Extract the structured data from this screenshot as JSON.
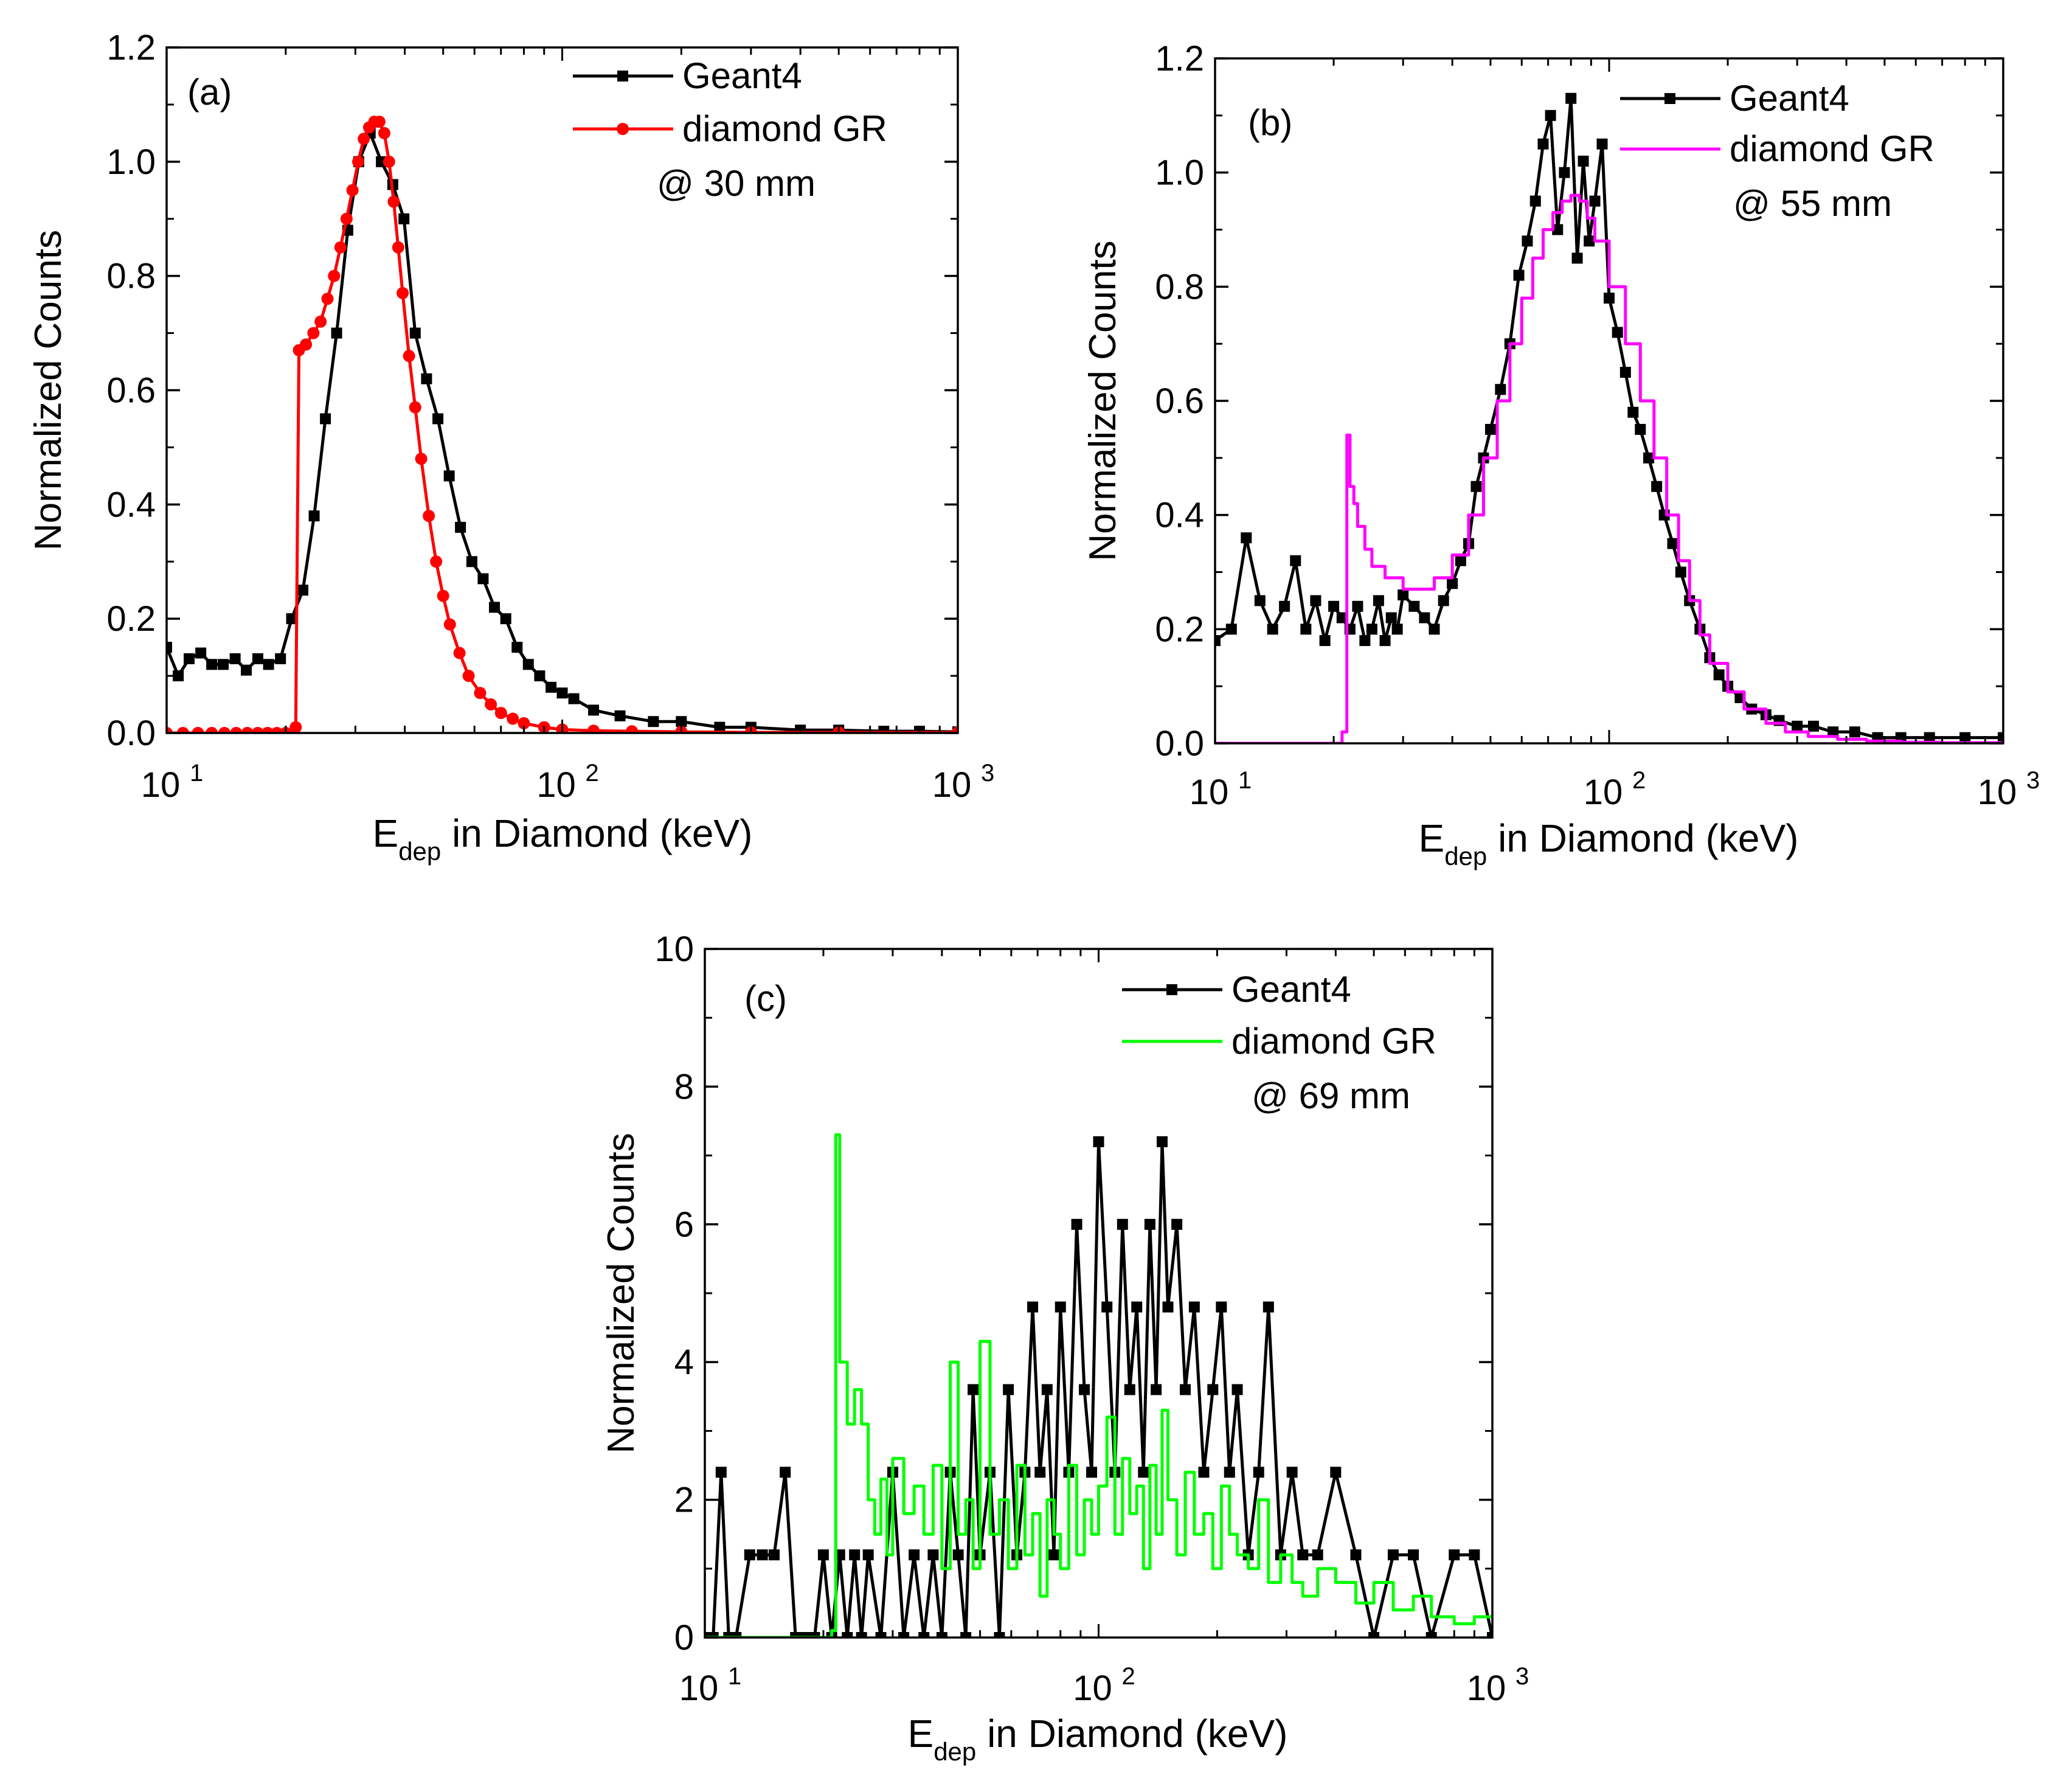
{
  "chart_data": [
    {
      "panel": "(a)",
      "type": "line",
      "xscale": "log",
      "xlim": [
        10,
        1000
      ],
      "ylim": [
        0,
        1.2
      ],
      "ylabel": "Normalized Counts",
      "xlabel_main": "E",
      "xlabel_sub": "dep",
      "xlabel_rest": " in Diamond (keV)",
      "yticks": [
        "0.0",
        "0.2",
        "0.4",
        "0.6",
        "0.8",
        "1.0",
        "1.2"
      ],
      "xtick_exponents": [
        "1",
        "2",
        "3"
      ],
      "xtick_base": "10",
      "annotation": "@ 30 mm",
      "grid": false,
      "legend_position": "top-right",
      "series": [
        {
          "name": "Geant4",
          "color": "#000000",
          "marker": "square",
          "style": "line",
          "x": [
            10,
            10.7,
            11.4,
            12.2,
            13,
            13.9,
            14.9,
            15.9,
            17,
            18.1,
            19.4,
            20.7,
            22.1,
            23.6,
            25.2,
            26.9,
            28.7,
            30.6,
            32.7,
            34.9,
            37.3,
            39.8,
            42.5,
            45.4,
            48.5,
            51.8,
            55.3,
            59.1,
            63.1,
            67.4,
            72,
            76.9,
            82.1,
            87.7,
            93.7,
            100,
            107,
            120,
            140,
            170,
            200,
            250,
            300,
            400,
            500,
            650,
            800,
            1000
          ],
          "y": [
            0.15,
            0.1,
            0.13,
            0.14,
            0.12,
            0.12,
            0.13,
            0.11,
            0.13,
            0.12,
            0.13,
            0.2,
            0.25,
            0.38,
            0.55,
            0.7,
            0.88,
            1.0,
            1.05,
            1.0,
            0.96,
            0.9,
            0.7,
            0.62,
            0.55,
            0.45,
            0.36,
            0.3,
            0.27,
            0.22,
            0.2,
            0.15,
            0.12,
            0.1,
            0.08,
            0.07,
            0.06,
            0.04,
            0.03,
            0.02,
            0.02,
            0.01,
            0.01,
            0.005,
            0.005,
            0.003,
            0.003,
            0.002
          ]
        },
        {
          "name": "diamond GR",
          "color": "#ff0000",
          "marker": "circle",
          "style": "line",
          "x": [
            10,
            11,
            12,
            13,
            14,
            15,
            16,
            17,
            18,
            19,
            20,
            21.2,
            21.6,
            22.5,
            23.5,
            24.5,
            25.5,
            26.5,
            27.5,
            28.5,
            29.5,
            30.5,
            31.5,
            32.5,
            33.5,
            34.5,
            35.5,
            36.5,
            37.5,
            38.5,
            39.5,
            41,
            42.5,
            44,
            46,
            48,
            50,
            52,
            55,
            58,
            62,
            66,
            70,
            75,
            80,
            90,
            100,
            120,
            150,
            200,
            300,
            500,
            1000
          ],
          "y": [
            0,
            0,
            0,
            0,
            0,
            0,
            0,
            0,
            0,
            0,
            0,
            0.01,
            0.67,
            0.68,
            0.7,
            0.72,
            0.76,
            0.8,
            0.85,
            0.9,
            0.95,
            1.0,
            1.04,
            1.06,
            1.07,
            1.07,
            1.05,
            1.0,
            0.93,
            0.85,
            0.77,
            0.66,
            0.57,
            0.48,
            0.38,
            0.3,
            0.24,
            0.19,
            0.14,
            0.1,
            0.07,
            0.05,
            0.035,
            0.025,
            0.017,
            0.01,
            0.006,
            0.004,
            0.003,
            0.002,
            0.001,
            0.001,
            0.001
          ]
        }
      ]
    },
    {
      "panel": "(b)",
      "type": "line",
      "xscale": "log",
      "xlim": [
        10,
        1000
      ],
      "ylim": [
        0,
        1.2
      ],
      "ylabel": "Normalized Counts",
      "xlabel_main": "E",
      "xlabel_sub": "dep",
      "xlabel_rest": " in Diamond  (keV)",
      "yticks": [
        "0.0",
        "0.2",
        "0.4",
        "0.6",
        "0.8",
        "1.0",
        "1.2"
      ],
      "xtick_exponents": [
        "1",
        "2",
        "3"
      ],
      "xtick_base": "10",
      "annotation": "@ 55 mm",
      "grid": false,
      "legend_position": "top-right",
      "series": [
        {
          "name": "Geant4",
          "color": "#000000",
          "marker": "square",
          "style": "line",
          "x": [
            10,
            11,
            12,
            13,
            14,
            15,
            16,
            17,
            18,
            19,
            20,
            21,
            22,
            23,
            24,
            25,
            26,
            27,
            28,
            29,
            30,
            32,
            34,
            36,
            38,
            40,
            42,
            44,
            46,
            48,
            50,
            53,
            56,
            59,
            62,
            65,
            68,
            71,
            74,
            77,
            80,
            83,
            86,
            89,
            92,
            96,
            100,
            105,
            110,
            115,
            120,
            126,
            132,
            138,
            145,
            152,
            160,
            170,
            180,
            190,
            200,
            215,
            230,
            250,
            270,
            300,
            330,
            370,
            420,
            480,
            550,
            650,
            800,
            1000
          ],
          "y": [
            0.18,
            0.2,
            0.36,
            0.25,
            0.2,
            0.24,
            0.32,
            0.2,
            0.25,
            0.18,
            0.24,
            0.22,
            0.2,
            0.24,
            0.18,
            0.2,
            0.25,
            0.18,
            0.22,
            0.2,
            0.26,
            0.24,
            0.22,
            0.2,
            0.25,
            0.28,
            0.32,
            0.35,
            0.45,
            0.5,
            0.55,
            0.62,
            0.7,
            0.82,
            0.88,
            0.95,
            1.05,
            1.1,
            0.9,
            1.0,
            1.13,
            0.85,
            1.02,
            0.88,
            0.95,
            1.05,
            0.78,
            0.72,
            0.65,
            0.58,
            0.55,
            0.5,
            0.45,
            0.4,
            0.35,
            0.3,
            0.25,
            0.2,
            0.15,
            0.12,
            0.1,
            0.08,
            0.06,
            0.05,
            0.04,
            0.03,
            0.03,
            0.02,
            0.02,
            0.01,
            0.01,
            0.01,
            0.01,
            0.01
          ]
        },
        {
          "name": "diamond GR",
          "color": "#ff00ff",
          "marker": "none",
          "style": "step",
          "x": [
            10,
            15,
            20.5,
            21,
            21.6,
            22,
            22.5,
            23,
            24,
            25,
            27,
            30,
            33,
            36,
            40,
            44,
            48,
            52,
            56,
            60,
            64,
            68,
            72,
            76,
            80,
            84,
            88,
            92,
            100,
            110,
            120,
            130,
            140,
            150,
            160,
            170,
            180,
            200,
            220,
            250,
            280,
            320,
            380,
            450,
            550,
            700,
            1000
          ],
          "y": [
            0,
            0,
            0,
            0.02,
            0.54,
            0.45,
            0.42,
            0.38,
            0.34,
            0.31,
            0.29,
            0.27,
            0.27,
            0.29,
            0.33,
            0.4,
            0.5,
            0.6,
            0.7,
            0.78,
            0.85,
            0.9,
            0.93,
            0.95,
            0.96,
            0.95,
            0.92,
            0.88,
            0.8,
            0.7,
            0.6,
            0.5,
            0.4,
            0.32,
            0.25,
            0.19,
            0.14,
            0.09,
            0.06,
            0.035,
            0.02,
            0.012,
            0.007,
            0.004,
            0.002,
            0.001,
            0.001
          ]
        }
      ]
    },
    {
      "panel": "(c)",
      "type": "line",
      "xscale": "log",
      "xlim": [
        10,
        1000
      ],
      "ylim": [
        0,
        10
      ],
      "ylabel": "Normalized Counts",
      "xlabel_main": "E",
      "xlabel_sub": "dep",
      "xlabel_rest": " in Diamond (keV)",
      "yticks": [
        "0",
        "2",
        "4",
        "6",
        "8",
        "10"
      ],
      "xtick_exponents": [
        "1",
        "2",
        "3"
      ],
      "xtick_base": "10",
      "annotation": "@ 69 mm",
      "grid": false,
      "legend_position": "top-right",
      "series": [
        {
          "name": "Geant4",
          "color": "#000000",
          "marker": "square",
          "style": "line",
          "x": [
            10,
            10.5,
            11,
            11.5,
            12,
            13,
            14,
            15,
            16,
            17,
            18,
            19,
            20,
            21,
            22,
            23,
            24,
            25,
            26,
            28,
            30,
            32,
            34,
            36,
            38,
            40,
            42,
            44,
            46,
            48,
            50,
            53,
            56,
            59,
            62,
            65,
            68,
            71,
            74,
            77,
            80,
            84,
            88,
            92,
            96,
            100,
            105,
            110,
            115,
            120,
            125,
            130,
            135,
            140,
            145,
            150,
            158,
            166,
            175,
            185,
            195,
            205,
            215,
            225,
            240,
            255,
            270,
            290,
            310,
            330,
            360,
            400,
            450,
            500,
            560,
            630,
            700,
            800,
            900,
            1000
          ],
          "y": [
            0,
            0,
            2.4,
            0,
            0,
            1.2,
            1.2,
            1.2,
            2.4,
            0,
            0,
            0,
            1.2,
            0,
            1.2,
            0,
            1.2,
            0,
            1.2,
            0,
            2.4,
            0,
            1.2,
            0,
            1.2,
            0,
            2.4,
            1.2,
            0,
            3.6,
            1.2,
            2.4,
            0,
            3.6,
            1.2,
            2.4,
            4.8,
            2.4,
            3.6,
            1.2,
            4.8,
            2.4,
            6.0,
            3.6,
            2.4,
            7.2,
            4.8,
            2.4,
            6.0,
            3.6,
            4.8,
            2.4,
            6.0,
            3.6,
            7.2,
            4.8,
            6.0,
            3.6,
            4.8,
            2.4,
            3.6,
            4.8,
            2.4,
            3.6,
            1.2,
            2.4,
            4.8,
            1.2,
            2.4,
            1.2,
            1.2,
            2.4,
            1.2,
            0,
            1.2,
            1.2,
            0,
            1.2,
            1.2,
            0
          ]
        },
        {
          "name": "diamond GR",
          "color": "#00ff00",
          "marker": "none",
          "style": "step",
          "x": [
            10,
            15,
            20,
            21,
            21.5,
            22,
            23,
            24,
            25,
            26,
            27,
            28,
            29,
            30,
            32,
            34,
            36,
            38,
            40,
            42,
            44,
            46,
            48,
            50,
            53,
            56,
            59,
            62,
            65,
            68,
            71,
            74,
            77,
            80,
            84,
            88,
            92,
            96,
            100,
            105,
            110,
            115,
            120,
            125,
            130,
            135,
            140,
            145,
            150,
            158,
            166,
            175,
            185,
            195,
            205,
            215,
            225,
            240,
            255,
            270,
            290,
            310,
            330,
            360,
            400,
            450,
            500,
            560,
            630,
            700,
            800,
            900,
            1000
          ],
          "y": [
            0,
            0,
            0,
            0.1,
            7.3,
            4.0,
            3.1,
            3.6,
            3.1,
            2.0,
            1.5,
            2.3,
            1.2,
            2.6,
            1.8,
            2.2,
            1.5,
            2.5,
            1.0,
            4.0,
            1.5,
            2.0,
            1.0,
            4.3,
            1.5,
            2.0,
            1.0,
            2.5,
            1.2,
            1.8,
            0.6,
            2.0,
            1.5,
            1.0,
            2.5,
            1.2,
            2.0,
            1.5,
            2.2,
            3.2,
            1.5,
            2.6,
            1.8,
            2.2,
            1.0,
            2.5,
            1.5,
            3.3,
            2.0,
            1.2,
            2.4,
            1.5,
            1.8,
            1.0,
            2.2,
            1.5,
            1.2,
            1.0,
            2.0,
            0.8,
            1.2,
            0.8,
            0.6,
            1.0,
            0.8,
            0.5,
            0.8,
            0.4,
            0.6,
            0.3,
            0.2,
            0.3,
            0.3
          ]
        }
      ]
    }
  ]
}
